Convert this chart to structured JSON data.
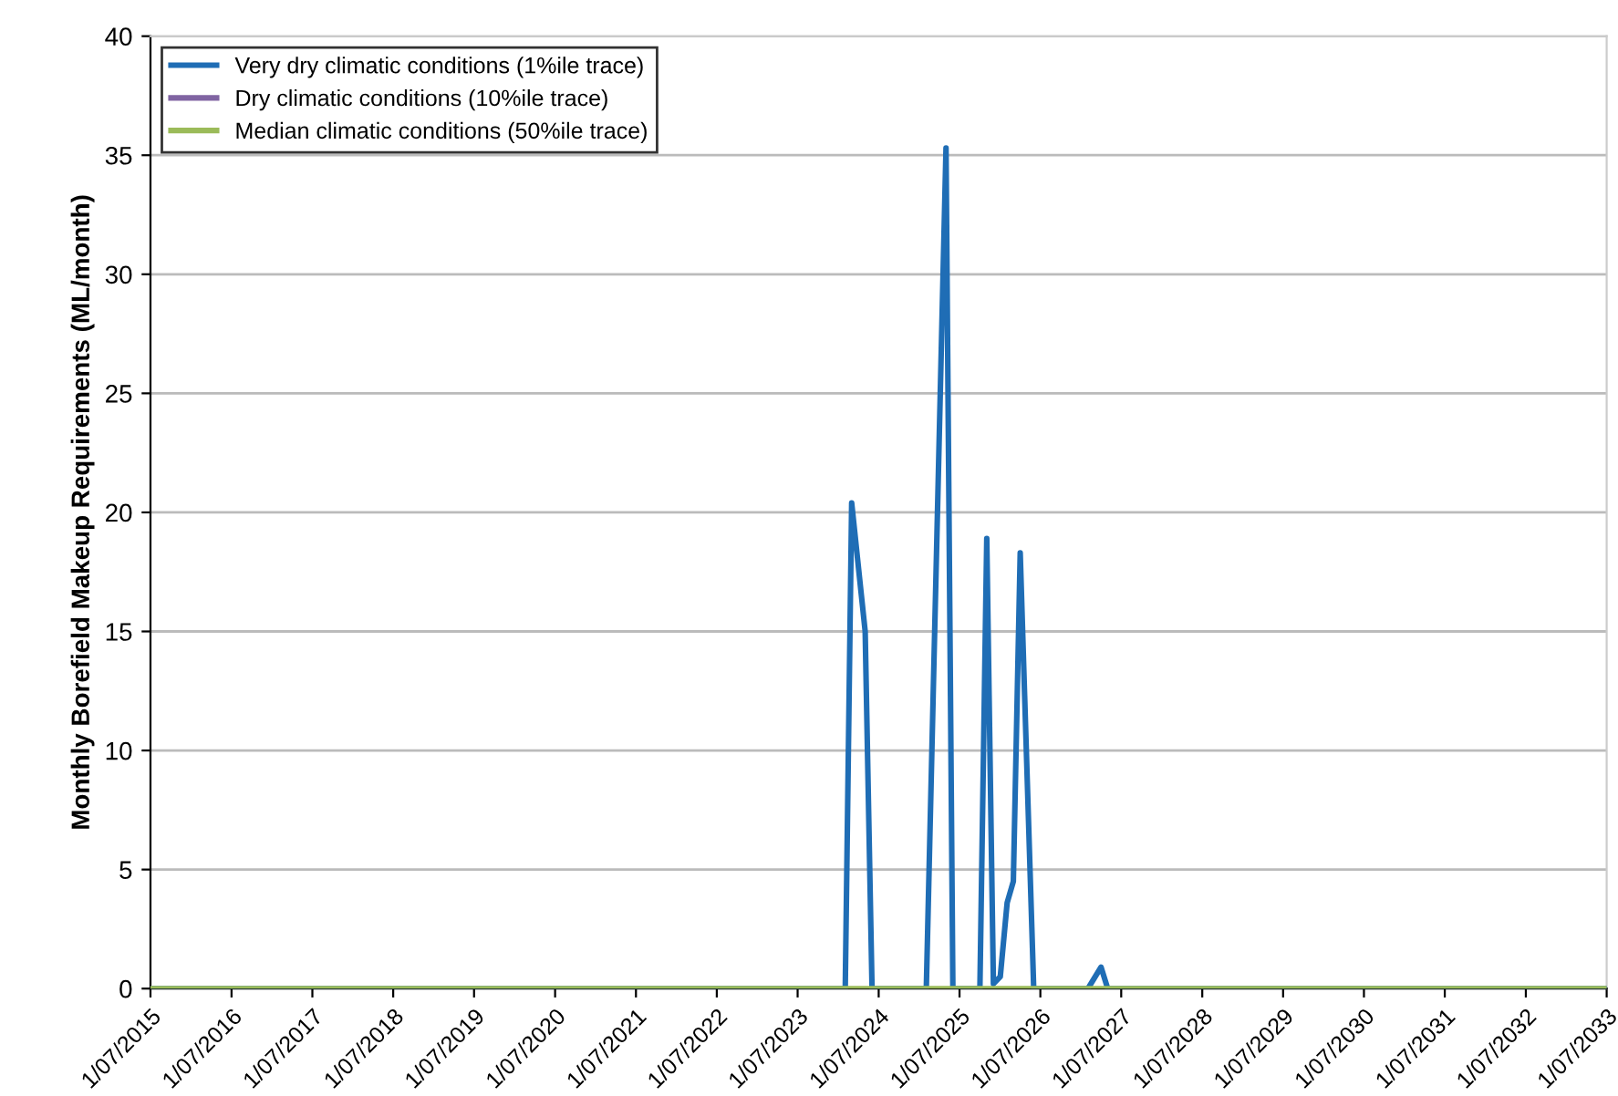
{
  "chart_data": {
    "type": "line",
    "ylabel": "Monthly Borefield Makeup Requirements (ML/month)",
    "ylim": [
      0,
      40
    ],
    "yticks": [
      0,
      5,
      10,
      15,
      20,
      25,
      30,
      35,
      40
    ],
    "xlim": [
      "2015-07",
      "2033-07"
    ],
    "xticks": [
      {
        "value": "2015-07",
        "label": "1/07/2015"
      },
      {
        "value": "2016-07",
        "label": "1/07/2016"
      },
      {
        "value": "2017-07",
        "label": "1/07/2017"
      },
      {
        "value": "2018-07",
        "label": "1/07/2018"
      },
      {
        "value": "2019-07",
        "label": "1/07/2019"
      },
      {
        "value": "2020-07",
        "label": "1/07/2020"
      },
      {
        "value": "2021-07",
        "label": "1/07/2021"
      },
      {
        "value": "2022-07",
        "label": "1/07/2022"
      },
      {
        "value": "2023-07",
        "label": "1/07/2023"
      },
      {
        "value": "2024-07",
        "label": "1/07/2024"
      },
      {
        "value": "2025-07",
        "label": "1/07/2025"
      },
      {
        "value": "2026-07",
        "label": "1/07/2026"
      },
      {
        "value": "2027-07",
        "label": "1/07/2027"
      },
      {
        "value": "2028-07",
        "label": "1/07/2028"
      },
      {
        "value": "2029-07",
        "label": "1/07/2029"
      },
      {
        "value": "2030-07",
        "label": "1/07/2030"
      },
      {
        "value": "2031-07",
        "label": "1/07/2031"
      },
      {
        "value": "2032-07",
        "label": "1/07/2032"
      },
      {
        "value": "2033-07",
        "label": "1/07/2033"
      }
    ],
    "grid": "y",
    "legend": "top left",
    "line_style": "solid",
    "marker": "none",
    "series": [
      {
        "name": "Very dry climatic conditions (1%ile trace)",
        "color": "#1f6db5",
        "x": [
          "2015-07",
          "2024-02",
          "2024-03",
          "2024-05",
          "2024-06",
          "2025-02",
          "2025-05",
          "2025-06",
          "2025-10",
          "2025-11",
          "2025-12",
          "2026-01",
          "2026-02",
          "2026-03",
          "2026-04",
          "2026-06",
          "2027-02",
          "2027-04",
          "2027-05",
          "2033-07"
        ],
        "values": [
          0,
          0,
          20.4,
          15,
          0,
          0,
          35.3,
          0,
          0,
          18.9,
          0.2,
          0.5,
          3.6,
          4.5,
          18.3,
          0,
          0,
          0.9,
          0,
          0
        ]
      },
      {
        "name": "Dry climatic conditions (10%ile trace)",
        "color": "#8064a2"
      },
      {
        "name": "Median climatic conditions (50%ile trace)",
        "color": "#9bbb59",
        "x": [
          "2015-07",
          "2033-07"
        ],
        "values": [
          0,
          0
        ]
      }
    ]
  }
}
